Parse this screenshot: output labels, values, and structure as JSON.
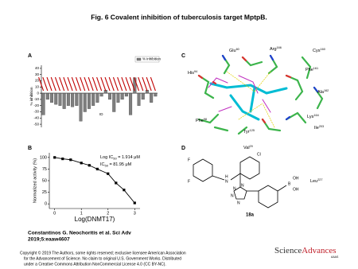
{
  "title": "Fig. 6 Covalent inhibition of tuberculosis target MptpB.",
  "panels": {
    "a": {
      "letter": "A",
      "chart_data": {
        "type": "bar",
        "y_label": "% inhibition",
        "legend": "% inhibition",
        "x_label": "ID",
        "color": "#7f7f7f",
        "categories": [
          null,
          null,
          null,
          null,
          null,
          null,
          null,
          null,
          null,
          null,
          null,
          null,
          null,
          null,
          null,
          null,
          null,
          null,
          null,
          null,
          null,
          null,
          null,
          null,
          null,
          null,
          null,
          null
        ],
        "values": [
          -35,
          -10,
          -15,
          -18,
          -20,
          -25,
          -20,
          -22,
          -20,
          -45,
          -30,
          -25,
          -20,
          -15,
          -5,
          5,
          -10,
          -30,
          -15,
          -10,
          -5,
          -35,
          25,
          -20,
          -10,
          5,
          -15,
          -5
        ],
        "ylim": [
          -55,
          45
        ],
        "yticks": [
          40,
          30,
          20,
          10,
          0,
          -10,
          -20,
          -30,
          -40,
          -50
        ]
      }
    },
    "b": {
      "letter": "B",
      "chart_data": {
        "type": "line",
        "x_label": "Log(DNMT17)",
        "y_label": "Normalized activity (%)",
        "annotation1": {
          "a": "Log IC",
          "sub": "50",
          "b": " = 1.914 μM"
        },
        "annotation2": {
          "a": "IC",
          "sub": "50",
          "b": " = 81.95 μM"
        },
        "x": [
          0,
          0.3,
          0.6,
          1,
          1.3,
          1.6,
          2,
          2.3,
          2.6,
          3
        ],
        "series": [
          {
            "color": "#000000",
            "values": [
              100,
              97,
              95,
              88,
              83,
              75,
              65,
              45,
              30,
              2
            ]
          }
        ],
        "xlim": [
          -0.2,
          3.2
        ],
        "ylim": [
          -10,
          110
        ],
        "xticks": [
          0,
          1,
          2,
          3
        ],
        "yticks": [
          0,
          25,
          50,
          75,
          100
        ]
      }
    },
    "c": {
      "letter": "C",
      "residues": [
        {
          "res": "Glu",
          "num": "60"
        },
        {
          "res": "Arg",
          "num": "166"
        },
        {
          "res": "Cys",
          "num": "160"
        },
        {
          "res": "His",
          "num": "94"
        },
        {
          "res": "Phe",
          "num": "161"
        },
        {
          "res": "Ala",
          "num": "162"
        },
        {
          "res": "Lys",
          "num": "164"
        },
        {
          "res": "Phe",
          "num": "98"
        },
        {
          "res": "Tyr",
          "num": "125"
        },
        {
          "res": "Ile",
          "num": "203"
        },
        {
          "res": "Val",
          "num": "29"
        },
        {
          "res": "Leu",
          "num": "227"
        }
      ]
    },
    "d": {
      "letter": "D",
      "compound": "18a",
      "atoms": [
        "F",
        "F",
        "H",
        "N",
        "Cl",
        "N",
        "N",
        "N",
        "N",
        "B",
        "OH",
        "OH"
      ]
    }
  },
  "citation": {
    "line1": "Constantinos G. Neochoritis et al. Sci Adv",
    "line2": "2019;5:eaaw4607"
  },
  "copyright": [
    "Copyright © 2019 The Authors, some rights reserved; exclusive licensee American Association",
    "for the Advancement of Science. No claim to original U.S. Government Works. Distributed",
    "under a Creative Commons Attribution NonCommercial License 4.0 (CC BY-NC)."
  ],
  "logo": {
    "a": "Science",
    "b": "Advances",
    "c": "AAAS"
  }
}
